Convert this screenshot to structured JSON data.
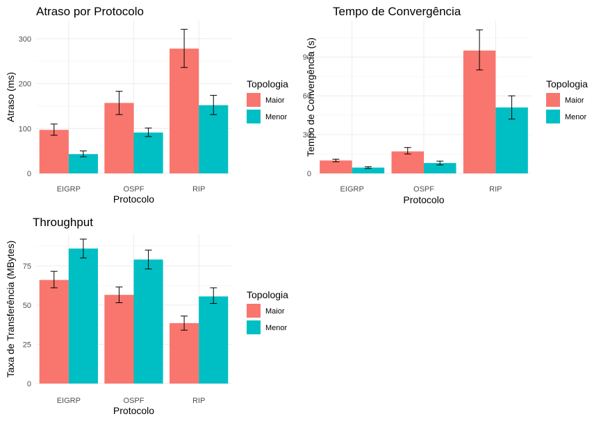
{
  "colors": {
    "Maior": "#F8766D",
    "Menor": "#00BFC4"
  },
  "chart_data": [
    {
      "type": "bar",
      "title": "Atraso por Protocolo",
      "xlabel": "Protocolo",
      "ylabel": "Atraso (ms)",
      "categories": [
        "EIGRP",
        "OSPF",
        "RIP"
      ],
      "ylim": [
        0,
        340
      ],
      "yticks": [
        0,
        100,
        200,
        300
      ],
      "legend_title": "Topologia",
      "series": [
        {
          "name": "Maior",
          "values": [
            97,
            157,
            278
          ],
          "err_low": [
            85,
            131,
            236
          ],
          "err_high": [
            110,
            183,
            321
          ]
        },
        {
          "name": "Menor",
          "values": [
            43,
            91,
            152
          ],
          "err_low": [
            37,
            82,
            131
          ],
          "err_high": [
            50,
            101,
            174
          ]
        }
      ]
    },
    {
      "type": "bar",
      "title": "Tempo de Convergência",
      "xlabel": "Protocolo",
      "ylabel": "Tempo de Convergência (s)",
      "categories": [
        "EIGRP",
        "OSPF",
        "RIP"
      ],
      "ylim": [
        0,
        118
      ],
      "yticks": [
        0,
        30,
        60,
        90
      ],
      "legend_title": "Topologia",
      "series": [
        {
          "name": "Maior",
          "values": [
            10,
            17,
            95
          ],
          "err_low": [
            9,
            15,
            80
          ],
          "err_high": [
            11,
            20,
            111
          ]
        },
        {
          "name": "Menor",
          "values": [
            4.5,
            8,
            51
          ],
          "err_low": [
            3.8,
            6.5,
            42
          ],
          "err_high": [
            5.2,
            9.5,
            60
          ]
        }
      ]
    },
    {
      "type": "bar",
      "title": "Throughput",
      "xlabel": "Protocolo",
      "ylabel": "Taxa de Transferência (MBytes)",
      "categories": [
        "EIGRP",
        "OSPF",
        "RIP"
      ],
      "ylim": [
        0,
        95
      ],
      "yticks": [
        0,
        25,
        50,
        75
      ],
      "legend_title": "Topologia",
      "series": [
        {
          "name": "Maior",
          "values": [
            66,
            56.5,
            38.5
          ],
          "err_low": [
            61,
            51.5,
            34
          ],
          "err_high": [
            71.5,
            61.5,
            43
          ]
        },
        {
          "name": "Menor",
          "values": [
            86,
            79,
            55.5
          ],
          "err_low": [
            80,
            73,
            51
          ],
          "err_high": [
            92,
            85,
            61
          ]
        }
      ]
    }
  ]
}
